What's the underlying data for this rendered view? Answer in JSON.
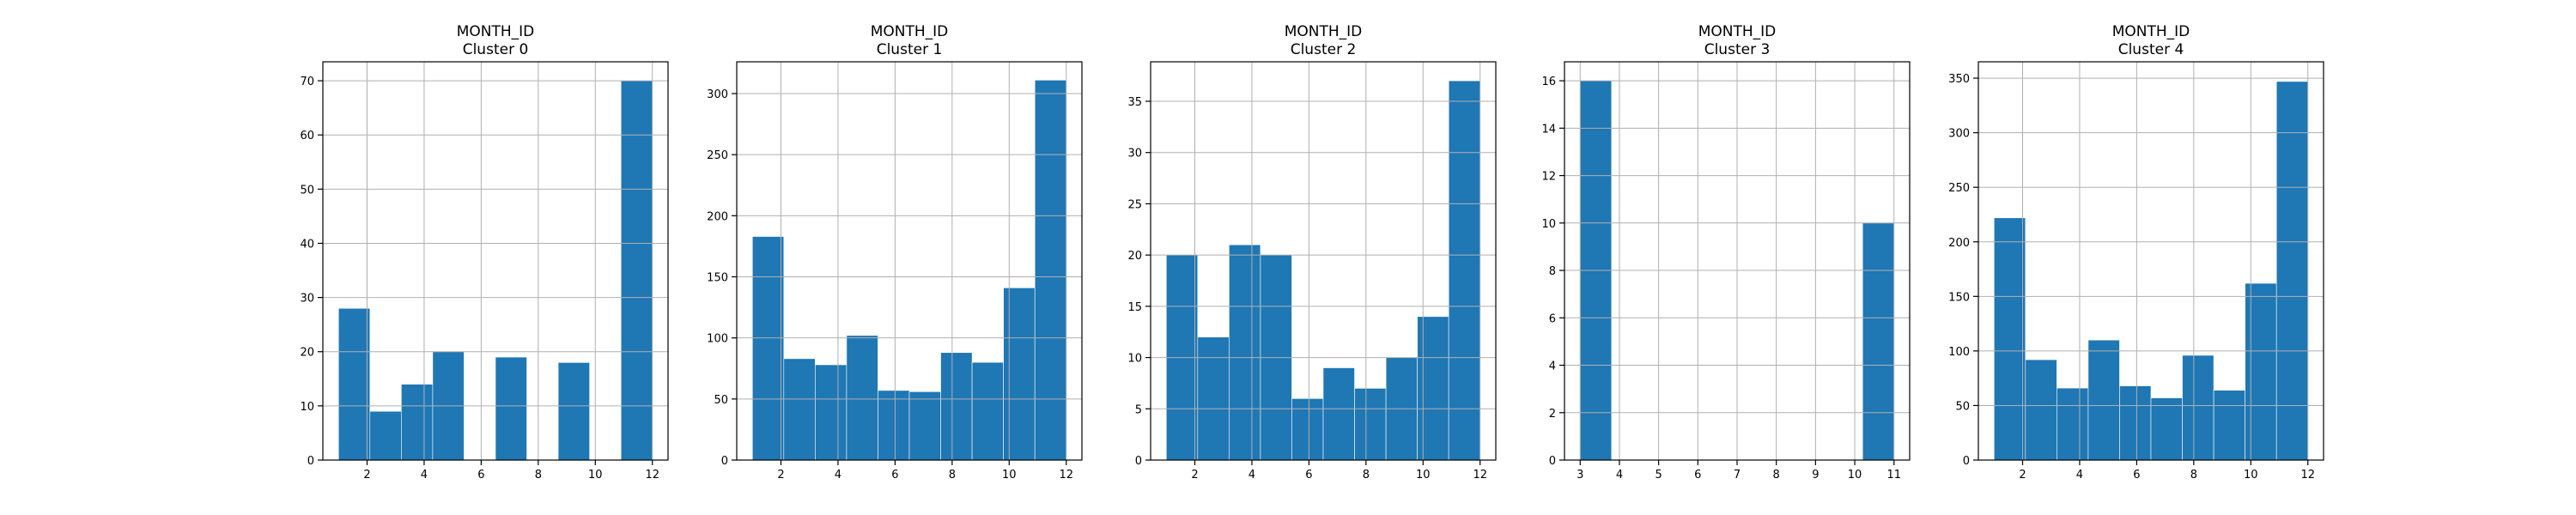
{
  "colors": {
    "bar": "#1f77b4",
    "bar_edge": "#ffffff",
    "grid": "#b0b0b0",
    "axis": "#000000",
    "background": "#ffffff"
  },
  "chart_data": [
    {
      "type": "bar",
      "title": "MONTH_ID",
      "subtitle": "Cluster 0",
      "xlabel": "",
      "ylabel": "",
      "xlim": [
        0.45,
        12.55
      ],
      "ylim": [
        0,
        73.5
      ],
      "xticks": [
        2,
        4,
        6,
        8,
        10,
        12
      ],
      "yticks": [
        0,
        10,
        20,
        30,
        40,
        50,
        60,
        70
      ],
      "grid": true,
      "bins": [
        {
          "x0": 1.0,
          "x1": 2.1,
          "value": 28
        },
        {
          "x0": 2.1,
          "x1": 3.2,
          "value": 9
        },
        {
          "x0": 3.2,
          "x1": 4.3,
          "value": 14
        },
        {
          "x0": 4.3,
          "x1": 5.4,
          "value": 20
        },
        {
          "x0": 5.4,
          "x1": 6.5,
          "value": 0
        },
        {
          "x0": 6.5,
          "x1": 7.6,
          "value": 19
        },
        {
          "x0": 7.6,
          "x1": 8.7,
          "value": 0
        },
        {
          "x0": 8.7,
          "x1": 9.8,
          "value": 18
        },
        {
          "x0": 9.8,
          "x1": 10.9,
          "value": 0
        },
        {
          "x0": 10.9,
          "x1": 12.0,
          "value": 70
        }
      ]
    },
    {
      "type": "bar",
      "title": "MONTH_ID",
      "subtitle": "Cluster 1",
      "xlabel": "",
      "ylabel": "",
      "xlim": [
        0.45,
        12.55
      ],
      "ylim": [
        0,
        326
      ],
      "xticks": [
        2,
        4,
        6,
        8,
        10,
        12
      ],
      "yticks": [
        0,
        50,
        100,
        150,
        200,
        250,
        300
      ],
      "grid": true,
      "bins": [
        {
          "x0": 1.0,
          "x1": 2.1,
          "value": 183
        },
        {
          "x0": 2.1,
          "x1": 3.2,
          "value": 83
        },
        {
          "x0": 3.2,
          "x1": 4.3,
          "value": 78
        },
        {
          "x0": 4.3,
          "x1": 5.4,
          "value": 102
        },
        {
          "x0": 5.4,
          "x1": 6.5,
          "value": 57
        },
        {
          "x0": 6.5,
          "x1": 7.6,
          "value": 56
        },
        {
          "x0": 7.6,
          "x1": 8.7,
          "value": 88
        },
        {
          "x0": 8.7,
          "x1": 9.8,
          "value": 80
        },
        {
          "x0": 9.8,
          "x1": 10.9,
          "value": 141
        },
        {
          "x0": 10.9,
          "x1": 12.0,
          "value": 311
        }
      ]
    },
    {
      "type": "bar",
      "title": "MONTH_ID",
      "subtitle": "Cluster 2",
      "xlabel": "",
      "ylabel": "",
      "xlim": [
        0.45,
        12.55
      ],
      "ylim": [
        0,
        38.85
      ],
      "xticks": [
        2,
        4,
        6,
        8,
        10,
        12
      ],
      "yticks": [
        0,
        5,
        10,
        15,
        20,
        25,
        30,
        35
      ],
      "grid": true,
      "bins": [
        {
          "x0": 1.0,
          "x1": 2.1,
          "value": 20
        },
        {
          "x0": 2.1,
          "x1": 3.2,
          "value": 12
        },
        {
          "x0": 3.2,
          "x1": 4.3,
          "value": 21
        },
        {
          "x0": 4.3,
          "x1": 5.4,
          "value": 20
        },
        {
          "x0": 5.4,
          "x1": 6.5,
          "value": 6
        },
        {
          "x0": 6.5,
          "x1": 7.6,
          "value": 9
        },
        {
          "x0": 7.6,
          "x1": 8.7,
          "value": 7
        },
        {
          "x0": 8.7,
          "x1": 9.8,
          "value": 10
        },
        {
          "x0": 9.8,
          "x1": 10.9,
          "value": 14
        },
        {
          "x0": 10.9,
          "x1": 12.0,
          "value": 37
        }
      ]
    },
    {
      "type": "bar",
      "title": "MONTH_ID",
      "subtitle": "Cluster 3",
      "xlabel": "",
      "ylabel": "",
      "xlim": [
        2.6,
        11.4
      ],
      "ylim": [
        0,
        16.8
      ],
      "xticks": [
        3,
        4,
        5,
        6,
        7,
        8,
        9,
        10,
        11
      ],
      "yticks": [
        0,
        2,
        4,
        6,
        8,
        10,
        12,
        14,
        16
      ],
      "grid": true,
      "bins": [
        {
          "x0": 3.0,
          "x1": 3.8,
          "value": 16
        },
        {
          "x0": 3.8,
          "x1": 4.6,
          "value": 0
        },
        {
          "x0": 4.6,
          "x1": 5.4,
          "value": 0
        },
        {
          "x0": 5.4,
          "x1": 6.2,
          "value": 0
        },
        {
          "x0": 6.2,
          "x1": 7.0,
          "value": 0
        },
        {
          "x0": 7.0,
          "x1": 7.8,
          "value": 0
        },
        {
          "x0": 7.8,
          "x1": 8.6,
          "value": 0
        },
        {
          "x0": 8.6,
          "x1": 9.4,
          "value": 0
        },
        {
          "x0": 9.4,
          "x1": 10.2,
          "value": 0
        },
        {
          "x0": 10.2,
          "x1": 11.0,
          "value": 10
        }
      ]
    },
    {
      "type": "bar",
      "title": "MONTH_ID",
      "subtitle": "Cluster 4",
      "xlabel": "",
      "ylabel": "",
      "xlim": [
        0.45,
        12.55
      ],
      "ylim": [
        0,
        365
      ],
      "xticks": [
        2,
        4,
        6,
        8,
        10,
        12
      ],
      "yticks": [
        0,
        50,
        100,
        150,
        200,
        250,
        300,
        350
      ],
      "grid": true,
      "bins": [
        {
          "x0": 1.0,
          "x1": 2.1,
          "value": 222
        },
        {
          "x0": 2.1,
          "x1": 3.2,
          "value": 92
        },
        {
          "x0": 3.2,
          "x1": 4.3,
          "value": 66
        },
        {
          "x0": 4.3,
          "x1": 5.4,
          "value": 110
        },
        {
          "x0": 5.4,
          "x1": 6.5,
          "value": 68
        },
        {
          "x0": 6.5,
          "x1": 7.6,
          "value": 57
        },
        {
          "x0": 7.6,
          "x1": 8.7,
          "value": 96
        },
        {
          "x0": 8.7,
          "x1": 9.8,
          "value": 64
        },
        {
          "x0": 9.8,
          "x1": 10.9,
          "value": 162
        },
        {
          "x0": 10.9,
          "x1": 12.0,
          "value": 347
        }
      ]
    }
  ]
}
